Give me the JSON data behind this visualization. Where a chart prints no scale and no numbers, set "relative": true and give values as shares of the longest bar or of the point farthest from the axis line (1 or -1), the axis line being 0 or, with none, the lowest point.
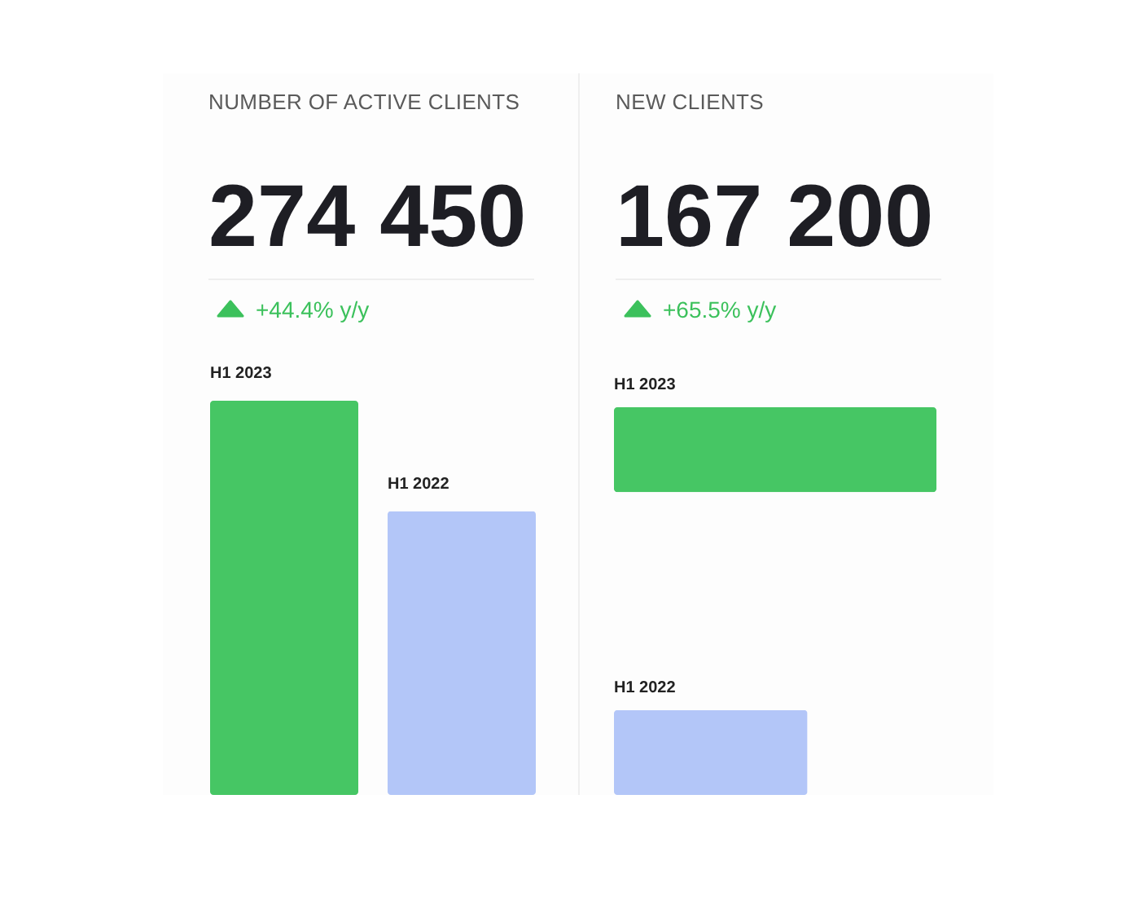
{
  "chart_data": [
    {
      "type": "bar",
      "title": "NUMBER OF ACTIVE CLIENTS",
      "annotations": [
        "274 450",
        "+44.4% y/y"
      ],
      "categories": [
        "H1 2023",
        "H1 2022"
      ],
      "values": [
        1,
        0.72
      ],
      "colors": [
        "#46c664",
        "#b3c6f8"
      ],
      "relative": true
    },
    {
      "type": "bar",
      "orientation": "horizontal",
      "title": "NEW CLIENTS",
      "annotations": [
        "167 200",
        "+65.5% y/y"
      ],
      "categories": [
        "H1 2023",
        "H1 2022"
      ],
      "values": [
        1,
        0.6
      ],
      "colors": [
        "#46c664",
        "#b3c6f8"
      ],
      "relative": true
    }
  ]
}
